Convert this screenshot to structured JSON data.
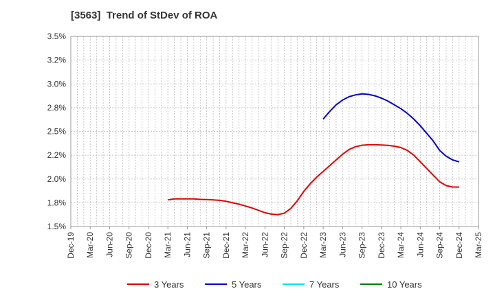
{
  "chart_data": {
    "type": "line",
    "title": "[3563]  Trend of StDev of ROA",
    "xlabel": "",
    "ylabel": "",
    "x_ticks": [
      "Dec-19",
      "Mar-20",
      "Jun-20",
      "Sep-20",
      "Dec-20",
      "Mar-21",
      "Jun-21",
      "Sep-21",
      "Dec-21",
      "Mar-22",
      "Jun-22",
      "Sep-22",
      "Dec-22",
      "Mar-23",
      "Jun-23",
      "Sep-23",
      "Dec-23",
      "Mar-24",
      "Jun-24",
      "Sep-24",
      "Dec-24",
      "Mar-25"
    ],
    "y_ticks": [
      "3.5%",
      "3.2%",
      "3.0%",
      "2.8%",
      "2.5%",
      "2.2%",
      "2.0%",
      "1.8%",
      "1.5%"
    ],
    "ylim": [
      1.5,
      3.5
    ],
    "grid": true,
    "legend_position": "bottom",
    "series": [
      {
        "name": "3 Years",
        "color": "#e00000",
        "points": [
          [
            "Mar-21",
            1.78
          ],
          [
            "Apr-21",
            1.79
          ],
          [
            "May-21",
            1.79
          ],
          [
            "Jun-21",
            1.79
          ],
          [
            "Jul-21",
            1.79
          ],
          [
            "Aug-21",
            1.785
          ],
          [
            "Sep-21",
            1.783
          ],
          [
            "Oct-21",
            1.78
          ],
          [
            "Nov-21",
            1.775
          ],
          [
            "Dec-21",
            1.765
          ],
          [
            "Jan-22",
            1.75
          ],
          [
            "Feb-22",
            1.735
          ],
          [
            "Mar-22",
            1.715
          ],
          [
            "Apr-22",
            1.695
          ],
          [
            "May-22",
            1.67
          ],
          [
            "Jun-22",
            1.645
          ],
          [
            "Jul-22",
            1.63
          ],
          [
            "Aug-22",
            1.625
          ],
          [
            "Sep-22",
            1.64
          ],
          [
            "Oct-22",
            1.69
          ],
          [
            "Nov-22",
            1.77
          ],
          [
            "Dec-22",
            1.87
          ],
          [
            "Jan-23",
            1.95
          ],
          [
            "Feb-23",
            2.02
          ],
          [
            "Mar-23",
            2.08
          ],
          [
            "Apr-23",
            2.14
          ],
          [
            "May-23",
            2.2
          ],
          [
            "Jun-23",
            2.26
          ],
          [
            "Jul-23",
            2.31
          ],
          [
            "Aug-23",
            2.34
          ],
          [
            "Sep-23",
            2.355
          ],
          [
            "Oct-23",
            2.36
          ],
          [
            "Nov-23",
            2.36
          ],
          [
            "Dec-23",
            2.357
          ],
          [
            "Jan-24",
            2.354
          ],
          [
            "Feb-24",
            2.345
          ],
          [
            "Mar-24",
            2.33
          ],
          [
            "Apr-24",
            2.3
          ],
          [
            "May-24",
            2.25
          ],
          [
            "Jun-24",
            2.18
          ],
          [
            "Jul-24",
            2.11
          ],
          [
            "Aug-24",
            2.04
          ],
          [
            "Sep-24",
            1.97
          ],
          [
            "Oct-24",
            1.93
          ],
          [
            "Nov-24",
            1.915
          ],
          [
            "Dec-24",
            1.915
          ]
        ]
      },
      {
        "name": "5 Years",
        "color": "#0000cc",
        "points": [
          [
            "Mar-23",
            2.63
          ],
          [
            "Apr-23",
            2.71
          ],
          [
            "May-23",
            2.78
          ],
          [
            "Jun-23",
            2.83
          ],
          [
            "Jul-23",
            2.865
          ],
          [
            "Aug-23",
            2.885
          ],
          [
            "Sep-23",
            2.895
          ],
          [
            "Oct-23",
            2.89
          ],
          [
            "Nov-23",
            2.875
          ],
          [
            "Dec-23",
            2.85
          ],
          [
            "Jan-24",
            2.82
          ],
          [
            "Feb-24",
            2.78
          ],
          [
            "Mar-24",
            2.74
          ],
          [
            "Apr-24",
            2.69
          ],
          [
            "May-24",
            2.63
          ],
          [
            "Jun-24",
            2.56
          ],
          [
            "Jul-24",
            2.48
          ],
          [
            "Aug-24",
            2.4
          ],
          [
            "Sep-24",
            2.3
          ],
          [
            "Oct-24",
            2.24
          ],
          [
            "Nov-24",
            2.2
          ],
          [
            "Dec-24",
            2.18
          ]
        ]
      },
      {
        "name": "7 Years",
        "color": "#00e5ee",
        "points": []
      },
      {
        "name": "10 Years",
        "color": "#008000",
        "points": []
      }
    ]
  }
}
